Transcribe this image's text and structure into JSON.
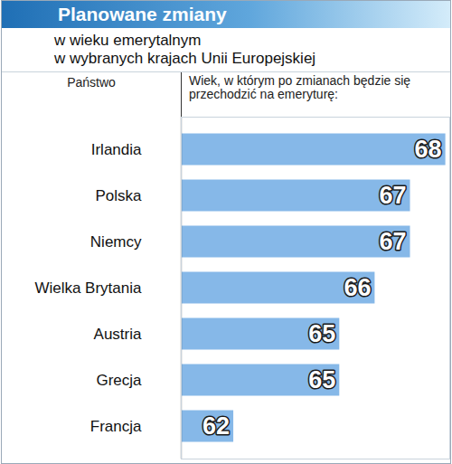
{
  "chart_data": {
    "type": "bar",
    "orientation": "horizontal",
    "title": "Planowane zmiany",
    "subtitle": [
      "w wieku emerytalnym",
      "w wybranych krajach Unii Europejskiej"
    ],
    "ylabel": "Państwo",
    "xlabel": "Wiek, w którym po zmianach będzie się przechodzić na emeryturę:",
    "categories": [
      "Irlandia",
      "Polska",
      "Niemcy",
      "Wielka Brytania",
      "Austria",
      "Grecja",
      "Francja"
    ],
    "values": [
      68,
      67,
      67,
      66,
      65,
      65,
      62
    ],
    "color": "#86b8e8",
    "xlim": [
      60.5,
      68.1
    ],
    "xticks": [],
    "tick_labels": "y",
    "data_labels": true,
    "grid": false
  }
}
